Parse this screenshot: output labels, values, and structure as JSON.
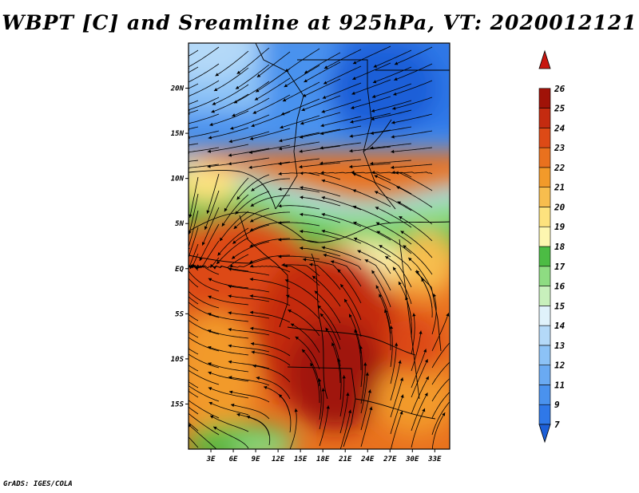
{
  "title": "WBPT [C] and Sreamline at 925hPa, VT: 2020012121",
  "footer": "GrADS: IGES/COLA",
  "map": {
    "variable": "Wet-bulb potential temperature",
    "units": "C",
    "level": "925hPa",
    "valid_time": "2020012121",
    "lat_ticks": [
      "20N",
      "15N",
      "10N",
      "5N",
      "EQ",
      "5S",
      "10S",
      "15S"
    ],
    "lon_ticks": [
      "3E",
      "6E",
      "9E",
      "12E",
      "15E",
      "18E",
      "21E",
      "24E",
      "27E",
      "30E",
      "33E"
    ],
    "lat_values": [
      20,
      15,
      10,
      5,
      0,
      -5,
      -10,
      -15
    ],
    "lon_values": [
      3,
      6,
      9,
      12,
      15,
      18,
      21,
      24,
      27,
      30,
      33
    ],
    "domain": {
      "lon_min": 0,
      "lon_max": 35,
      "lat_min": -20,
      "lat_max": 25
    }
  },
  "colorbar": {
    "labels": [
      "7",
      "9",
      "11",
      "12",
      "13",
      "14",
      "15",
      "16",
      "17",
      "18",
      "19",
      "20",
      "21",
      "22",
      "23",
      "24",
      "25",
      "26"
    ],
    "colors": [
      "#1c5fd8",
      "#2f78e8",
      "#4a92ee",
      "#6aaaf2",
      "#8cc2f6",
      "#b4d9f8",
      "#e0f2fb",
      "#c8f0bc",
      "#8edc82",
      "#4cbc44",
      "#fdf6b0",
      "#fde27e",
      "#f7bd4e",
      "#f29a2a",
      "#e9711e",
      "#dd4a16",
      "#c42b10",
      "#a01208",
      "#c8160f"
    ]
  }
}
